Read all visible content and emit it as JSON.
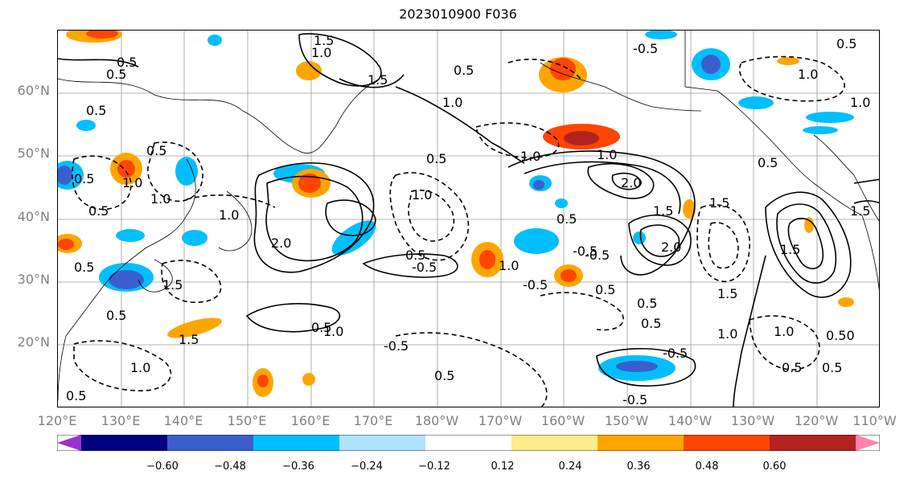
{
  "title": "2023010900 F036",
  "lat_labels": [
    "60°N",
    "50°N",
    "40°N",
    "30°N",
    "20°N"
  ],
  "lon_labels": [
    "120°E",
    "130°E",
    "140°E",
    "150°E",
    "160°E",
    "170°E",
    "180°W",
    "170°W",
    "160°W",
    "150°W",
    "140°W",
    "130°W",
    "120°W",
    "110°W"
  ],
  "colorbar": {
    "ticks": [
      "−0.60",
      "−0.48",
      "−0.36",
      "−0.24",
      "−0.12",
      "0.12",
      "0.24",
      "0.36",
      "0.48",
      "0.60"
    ],
    "colors": [
      "#9932cc",
      "#000080",
      "#3a5fcd",
      "#00bfff",
      "#b0e2ff",
      "#ffffff",
      "#ffec8b",
      "#ffa500",
      "#ff4500",
      "#b22222",
      "#ff82ab"
    ]
  },
  "contour_labels": [
    "1.5",
    "1.0",
    "0.5",
    "1.5",
    "1.0",
    "-0.5",
    "0.5",
    "0.5",
    "0.5",
    "1.0",
    "0.5",
    "2.0",
    "0.5",
    "1.0",
    "0.5",
    "1.0",
    "0.5",
    "-0.5",
    "0.5",
    "1.0",
    "0.5",
    "2.0",
    "1.5",
    "1.5",
    "1.0",
    "-0.5",
    "0.5",
    "1.0",
    "0.5",
    "-0.5",
    "-0.5",
    "0.5",
    "1.5",
    "1.0",
    "0.5",
    "1.0",
    "0.5",
    "-0.5",
    "0.5",
    "1.5",
    "0.5",
    "1.0",
    "1.0",
    "1.5",
    "2.0",
    "0.5",
    "1.0",
    "0.5",
    "-0.5",
    "-0.5",
    "0.5",
    "1.5",
    "1.0",
    "1.5",
    "0.5",
    "0.5",
    "1.0",
    "0.50"
  ]
}
